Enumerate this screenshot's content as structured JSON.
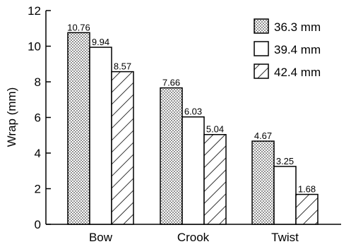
{
  "chart_data": {
    "type": "bar",
    "categories": [
      "Bow",
      "Crook",
      "Twist"
    ],
    "series": [
      {
        "name": "36.3 mm",
        "values": [
          10.76,
          7.66,
          4.67
        ],
        "pattern": "dots"
      },
      {
        "name": "39.4 mm",
        "values": [
          9.94,
          6.03,
          3.25
        ],
        "pattern": "blank"
      },
      {
        "name": "42.4 mm",
        "values": [
          8.57,
          5.04,
          1.68
        ],
        "pattern": "diagonal-hatch"
      }
    ],
    "data_labels": [
      [
        "10.76",
        "7.66",
        "4.67"
      ],
      [
        "9.94",
        "6.03",
        "3.25"
      ],
      [
        "8.57",
        "5.04",
        "1.68"
      ]
    ],
    "ylabel": "Wrap (mm)",
    "xlabel": "",
    "ylim": [
      0,
      12
    ],
    "yticks": [
      "0",
      "2",
      "4",
      "6",
      "8",
      "10",
      "12"
    ],
    "grid": false,
    "legend_position": "top-right",
    "colors": {
      "stroke": "#000000",
      "fill": "#ffffff"
    }
  }
}
